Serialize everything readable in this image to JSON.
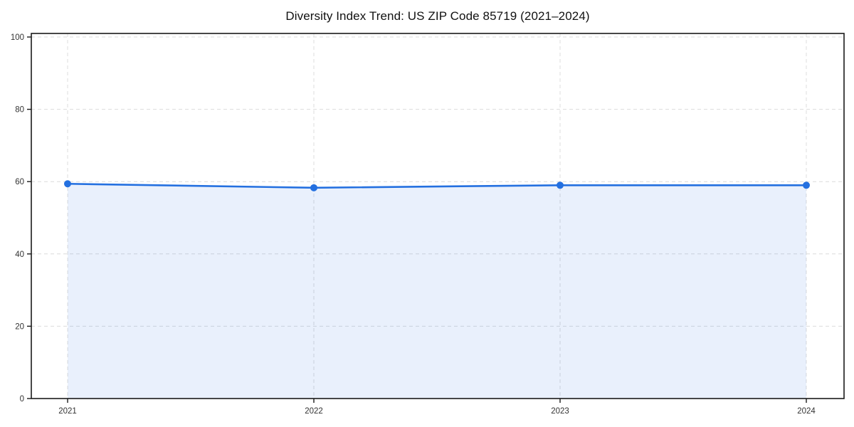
{
  "chart_data": {
    "type": "area",
    "title": "Diversity Index Trend: US ZIP Code 85719 (2021–2024)",
    "series": [
      {
        "name": "Diversity Index",
        "x": [
          2021,
          2022,
          2023,
          2024
        ],
        "values": [
          59.4,
          58.3,
          59.0,
          59.0
        ]
      }
    ],
    "xlabel": "",
    "ylabel": "",
    "xticks": [
      2021,
      2022,
      2023,
      2024
    ],
    "yticks": [
      0,
      20,
      40,
      60,
      80,
      100
    ],
    "ylim": [
      0,
      100
    ],
    "grid": true,
    "grid_style": "dashed",
    "legend": "none",
    "colors": {
      "line": "#2470e0",
      "marker": "#2470e0",
      "fill": "rgba(36,112,224,0.10)",
      "gridline": "#dcdcdc",
      "frame": "#1a1a1a",
      "tick_label": "#333333",
      "background": "#ffffff"
    }
  }
}
